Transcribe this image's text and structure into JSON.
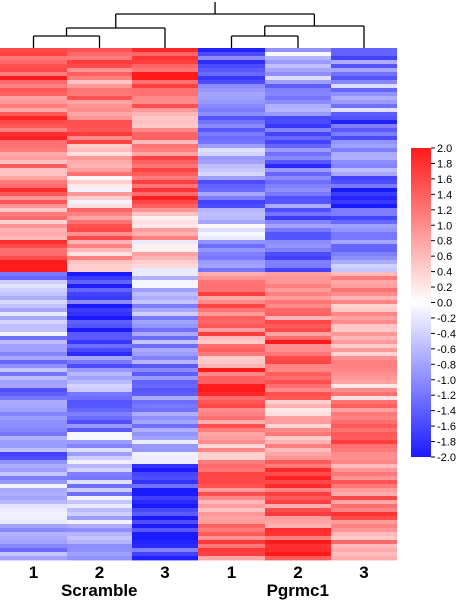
{
  "chart_data": {
    "type": "heatmap",
    "columns": [
      {
        "label": "1",
        "group": "Scramble"
      },
      {
        "label": "2",
        "group": "Scramble"
      },
      {
        "label": "3",
        "group": "Scramble"
      },
      {
        "label": "1",
        "group": "Pgrmc1"
      },
      {
        "label": "2",
        "group": "Pgrmc1"
      },
      {
        "label": "3",
        "group": "Pgrmc1"
      }
    ],
    "groups": [
      "Scramble",
      "Pgrmc1"
    ],
    "row_blocks": [
      {
        "values": [
          1.6,
          1.4,
          1.7,
          -1.5,
          -0.6,
          -1.2
        ]
      },
      {
        "values": [
          1.2,
          1.0,
          1.3,
          -1.3,
          -0.9,
          -0.8
        ]
      },
      {
        "values": [
          1.5,
          1.3,
          1.0,
          -1.0,
          -1.2,
          -1.4
        ]
      },
      {
        "values": [
          1.0,
          0.8,
          1.2,
          -0.8,
          -1.4,
          -1.0
        ]
      },
      {
        "values": [
          1.3,
          0.4,
          1.5,
          -1.2,
          -1.0,
          -1.6
        ]
      },
      {
        "values": [
          0.9,
          1.1,
          0.6,
          -0.4,
          -1.3,
          -1.2
        ]
      },
      {
        "values": [
          1.7,
          0.7,
          0.3,
          -0.9,
          -1.1,
          -0.9
        ]
      },
      {
        "values": [
          -0.8,
          -1.5,
          -0.3,
          1.2,
          1.3,
          0.8
        ]
      },
      {
        "values": [
          -0.5,
          -1.7,
          -0.7,
          1.4,
          1.1,
          0.6
        ]
      },
      {
        "values": [
          -0.9,
          -1.3,
          -1.0,
          1.0,
          1.5,
          0.9
        ]
      },
      {
        "values": [
          -1.0,
          -0.9,
          -1.2,
          1.6,
          1.2,
          0.7
        ]
      },
      {
        "values": [
          -0.7,
          -1.1,
          -0.8,
          1.1,
          0.7,
          1.0
        ]
      },
      {
        "values": [
          -1.1,
          -0.6,
          -0.5,
          0.8,
          1.0,
          1.4
        ]
      },
      {
        "values": [
          -0.6,
          -0.8,
          -1.7,
          1.3,
          1.4,
          1.1
        ]
      },
      {
        "values": [
          -0.4,
          -0.5,
          -1.9,
          0.9,
          1.2,
          1.3
        ]
      },
      {
        "values": [
          -0.8,
          -0.7,
          -1.6,
          1.2,
          1.6,
          0.9
        ]
      }
    ],
    "colorbar": {
      "min": -2.0,
      "max": 2.0,
      "ticks": [
        "2.0",
        "1.8",
        "1.6",
        "1.4",
        "1.2",
        "1.0",
        "0.8",
        "0.6",
        "0.4",
        "0.2",
        "0.0",
        "-0.2",
        "-0.4",
        "-0.6",
        "-0.8",
        "-1.0",
        "-1.2",
        "-1.4",
        "-1.6",
        "-1.8",
        "-2.0"
      ],
      "colors": {
        "low": "#1a1aff",
        "mid": "#ffffff",
        "high": "#ff1a1a"
      }
    },
    "dendrogram": true,
    "title": "",
    "xlabel": "",
    "ylabel": ""
  }
}
